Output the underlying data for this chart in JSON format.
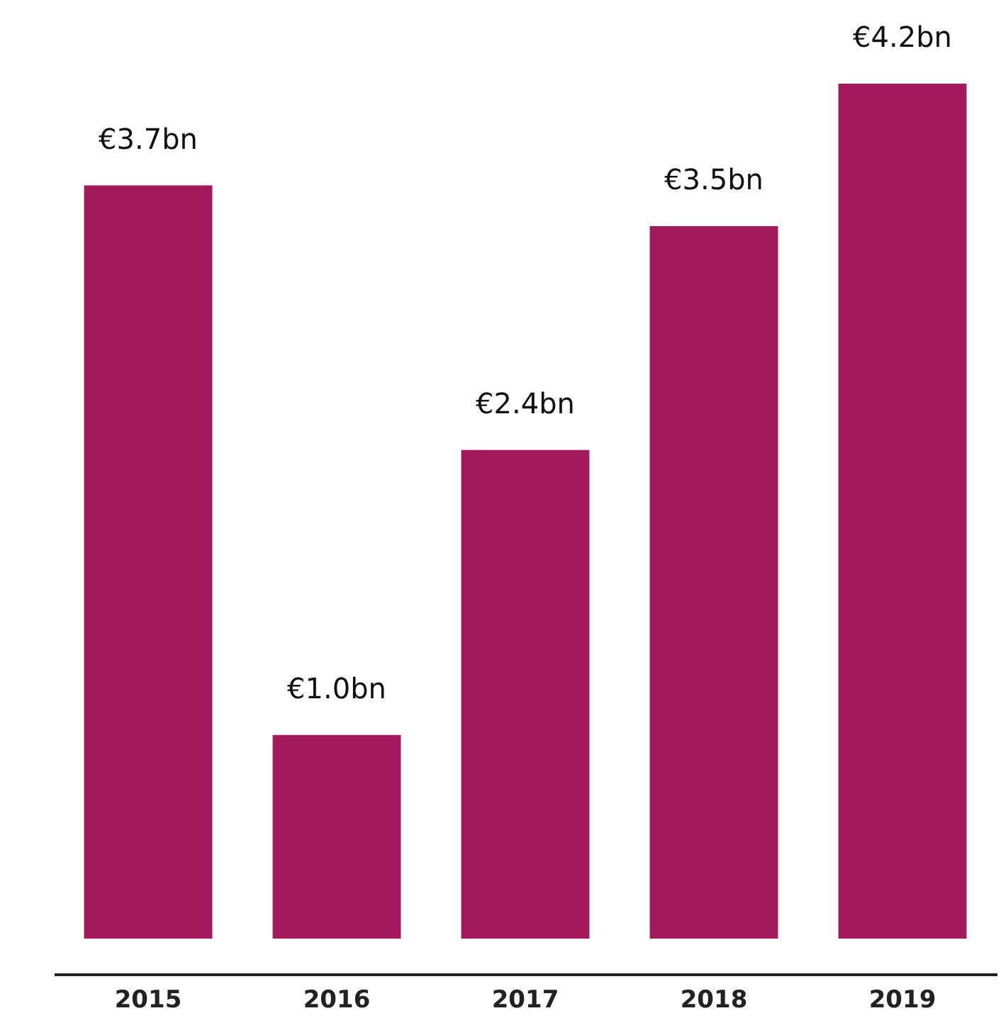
{
  "chart_data": {
    "type": "bar",
    "categories": [
      "2015",
      "2016",
      "2017",
      "2018",
      "2019"
    ],
    "values": [
      3.7,
      1.0,
      2.4,
      3.5,
      4.2
    ],
    "value_labels": [
      "€3.7bn",
      "€1.0bn",
      "€2.4bn",
      "€3.5bn",
      "€4.2bn"
    ],
    "color": "#a3195b",
    "tick_labels": "x",
    "grid": false
  }
}
